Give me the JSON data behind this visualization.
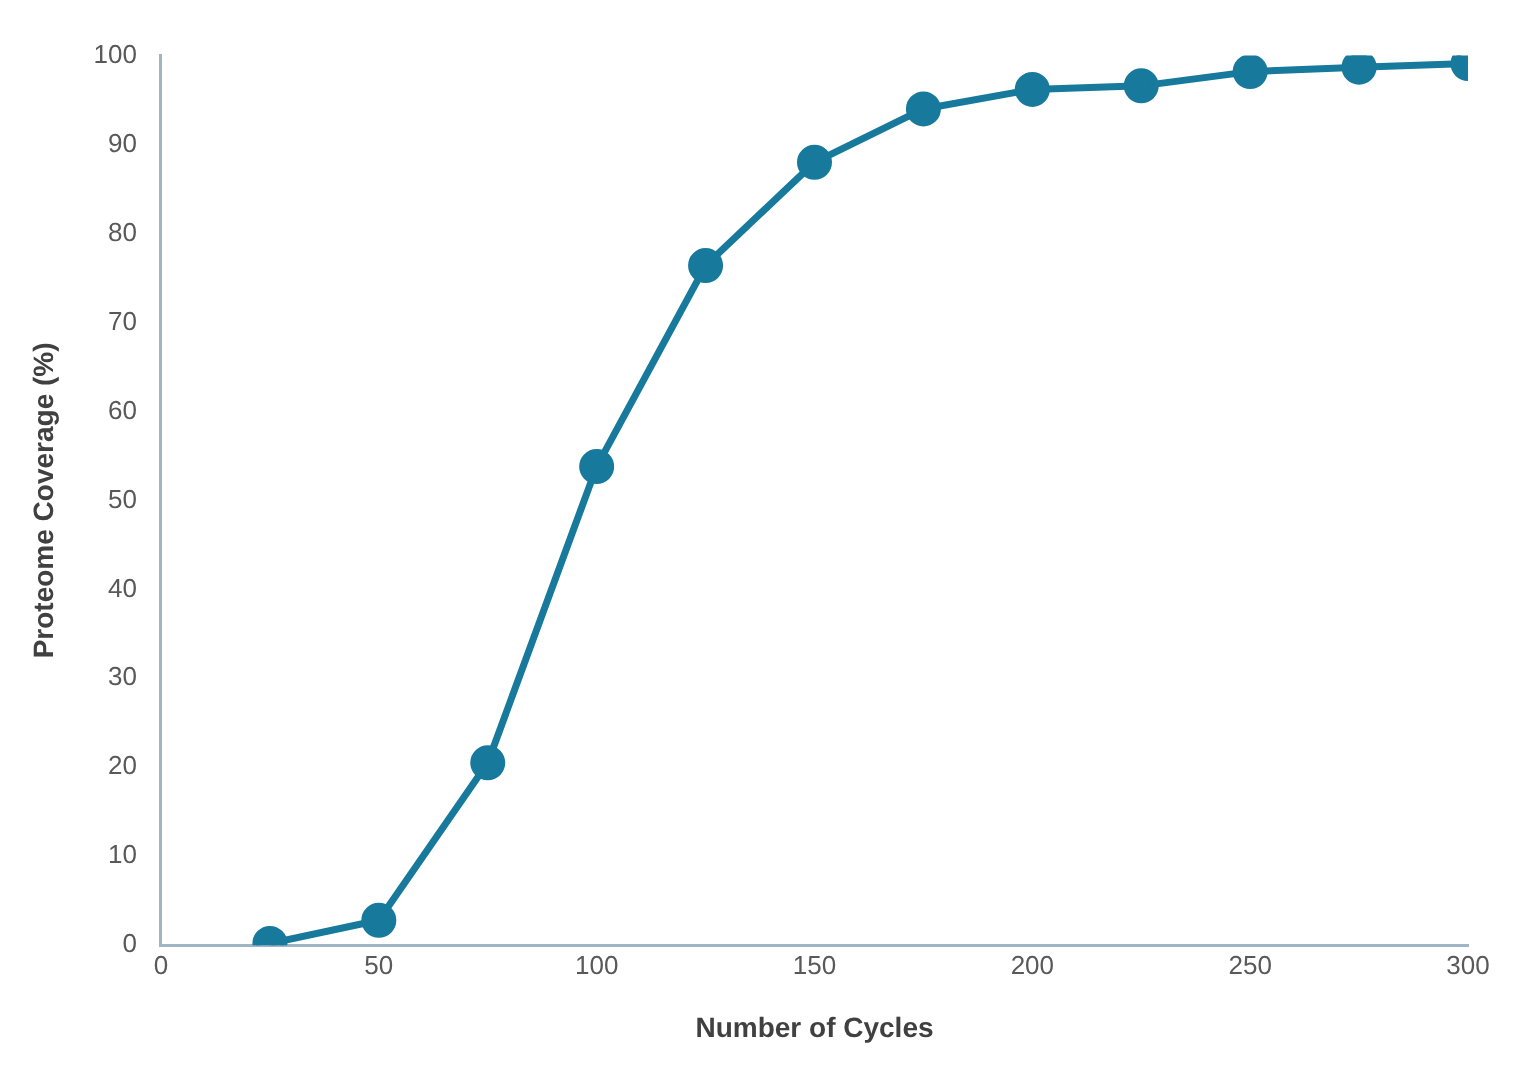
{
  "chart_data": {
    "type": "line",
    "xlabel": "Number of Cycles",
    "ylabel": "Proteome Coverage (%)",
    "x": [
      25,
      50,
      75,
      100,
      125,
      150,
      175,
      200,
      225,
      250,
      275,
      300
    ],
    "series": [
      {
        "color": "#17799b",
        "values": [
          0.2,
          2.8,
          20.5,
          53.8,
          76.4,
          88,
          94,
          96.2,
          96.6,
          98.2,
          98.7,
          99.1
        ]
      }
    ],
    "xlim": [
      0,
      300
    ],
    "xticks": [
      0,
      50,
      100,
      150,
      200,
      250,
      300
    ],
    "ylim": [
      0,
      100
    ],
    "yticks": [
      0,
      10,
      20,
      30,
      40,
      50,
      60,
      70,
      80,
      90,
      100
    ],
    "grid": false,
    "legend": false,
    "marker": "circle",
    "line_style": "solid"
  }
}
